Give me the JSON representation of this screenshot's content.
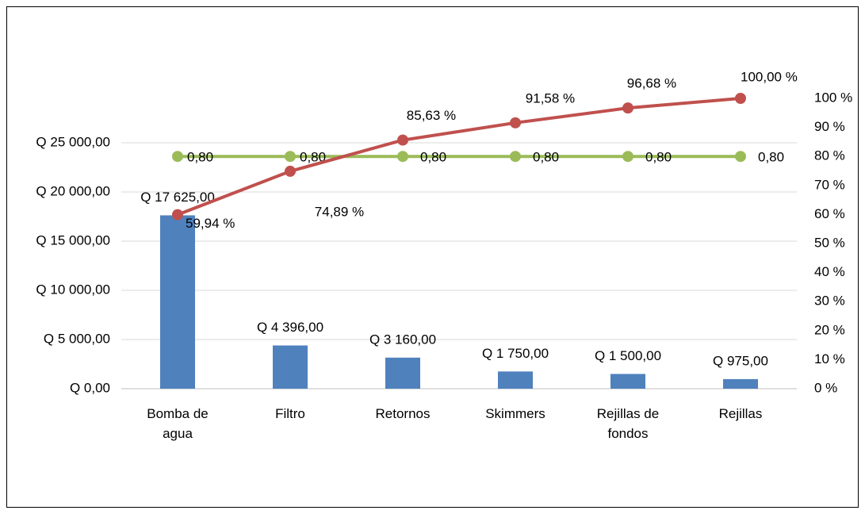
{
  "chart_data": {
    "type": "pareto",
    "categories": [
      "Bomba de agua",
      "Filtro",
      "Retornos",
      "Skimmers",
      "Rejillas de fondos",
      "Rejillas"
    ],
    "series": [
      {
        "type": "bar",
        "color": "#4f81bd",
        "values": [
          17625,
          4396,
          3160,
          1750,
          1500,
          975
        ],
        "value_labels": [
          "Q 17 625,00",
          "Q 4 396,00",
          "Q 3 160,00",
          "Q 1 750,00",
          "Q 1 500,00",
          "Q 975,00"
        ]
      },
      {
        "type": "line",
        "axis": "y2",
        "color": "#c0504d",
        "values": [
          0.5994,
          0.7489,
          0.8563,
          0.9158,
          0.9668,
          1.0
        ],
        "value_labels": [
          "59,94 %",
          "74,89 %",
          "85,63 %",
          "91,58 %",
          "96,68 %",
          "100,00 %"
        ]
      },
      {
        "type": "line",
        "axis": "y2",
        "color": "#9bbb59",
        "values": [
          0.8,
          0.8,
          0.8,
          0.8,
          0.8,
          0.8
        ],
        "value_labels": [
          "0,80",
          "0,80",
          "0,80",
          "0,80",
          "0,80",
          "0,80"
        ]
      }
    ],
    "ylim": [
      0,
      25000
    ],
    "yticks": [
      {
        "value": 0,
        "label": "Q 0,00"
      },
      {
        "value": 5000,
        "label": "Q 5 000,00"
      },
      {
        "value": 10000,
        "label": "Q 10 000,00"
      },
      {
        "value": 15000,
        "label": "Q 15 000,00"
      },
      {
        "value": 20000,
        "label": "Q 20 000,00"
      },
      {
        "value": 25000,
        "label": "Q 25 000,00"
      }
    ],
    "y2lim": [
      0,
      1
    ],
    "y2ticks": [
      {
        "value": 0,
        "label": "0 %"
      },
      {
        "value": 0.1,
        "label": "10 %"
      },
      {
        "value": 0.2,
        "label": "20 %"
      },
      {
        "value": 0.3,
        "label": "30 %"
      },
      {
        "value": 0.4,
        "label": "40 %"
      },
      {
        "value": 0.5,
        "label": "50 %"
      },
      {
        "value": 0.6,
        "label": "60 %"
      },
      {
        "value": 0.7,
        "label": "70 %"
      },
      {
        "value": 0.8,
        "label": "80 %"
      },
      {
        "value": 0.9,
        "label": "90 %"
      },
      {
        "value": 1,
        "label": "100 %"
      }
    ],
    "grid": true
  }
}
